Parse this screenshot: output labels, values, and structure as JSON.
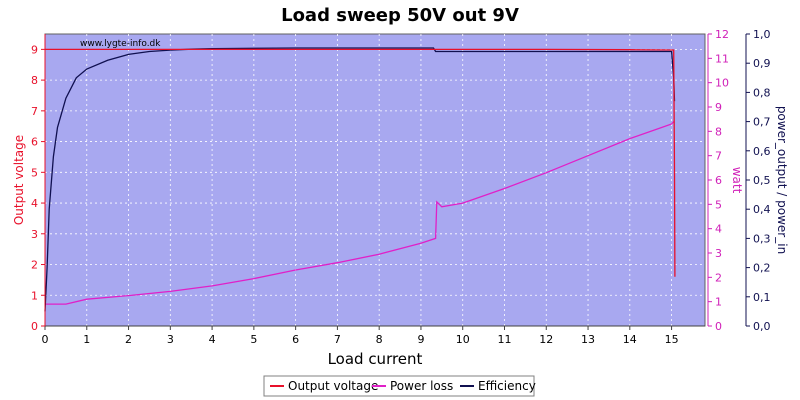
{
  "chart_data": {
    "type": "line",
    "title": "Load sweep 50V out 9V",
    "watermark": "www.lygte-info.dk",
    "xlabel": "Load current",
    "y_left_label": "Output voltage",
    "y_right1_label": "watt",
    "y_right2_label": "power_output / power_in",
    "xlim": [
      0,
      15.8
    ],
    "y_left_lim": [
      0,
      9.5
    ],
    "y_right1_lim": [
      0,
      12
    ],
    "y_right2_lim": [
      0,
      1.0
    ],
    "x_ticks": [
      "0",
      "1",
      "2",
      "3",
      "4",
      "5",
      "6",
      "7",
      "8",
      "9",
      "10",
      "11",
      "12",
      "13",
      "14",
      "15"
    ],
    "y_left_ticks": [
      "0",
      "1",
      "2",
      "3",
      "4",
      "5",
      "6",
      "7",
      "8",
      "9"
    ],
    "y_right1_ticks": [
      "0",
      "1",
      "2",
      "3",
      "4",
      "5",
      "6",
      "7",
      "8",
      "9",
      "10",
      "11",
      "12"
    ],
    "y_right2_ticks": [
      "0,0",
      "0,1",
      "0,2",
      "0,3",
      "0,4",
      "0,5",
      "0,6",
      "0,7",
      "0,8",
      "0,9",
      "1,0"
    ],
    "grid": true,
    "legend_position": "bottom-center",
    "colors": {
      "plot_bg": "#a8a8f0",
      "output_voltage": "#e8102a",
      "power_loss": "#e020c8",
      "efficiency": "#101050",
      "left_axis": "#e8102a",
      "right1_axis": "#d020b8",
      "right2_axis": "#101050"
    },
    "series": [
      {
        "name": "Output voltage",
        "axis": "left",
        "x": [
          0,
          1,
          2,
          4,
          6,
          8,
          9,
          9.4,
          10,
          12,
          14,
          15.05,
          15.07,
          15.08
        ],
        "y": [
          9.0,
          9.0,
          9.0,
          9.0,
          9.0,
          9.0,
          9.0,
          9.0,
          9.0,
          9.0,
          8.99,
          8.98,
          5.0,
          1.6
        ]
      },
      {
        "name": "Power loss",
        "axis": "right1",
        "x": [
          0,
          0.5,
          1,
          2,
          3,
          4,
          5,
          6,
          7,
          8,
          9,
          9.35,
          9.38,
          9.5,
          10,
          11,
          12,
          13,
          14,
          15,
          15.05
        ],
        "y": [
          0.9,
          0.9,
          1.1,
          1.25,
          1.42,
          1.65,
          1.95,
          2.3,
          2.6,
          2.95,
          3.4,
          3.6,
          5.1,
          4.9,
          5.05,
          5.65,
          6.3,
          7.0,
          7.7,
          8.3,
          8.4
        ]
      },
      {
        "name": "Efficiency",
        "axis": "right2",
        "x": [
          0,
          0.05,
          0.1,
          0.2,
          0.3,
          0.5,
          0.75,
          1,
          1.5,
          2,
          2.5,
          3,
          3.5,
          4,
          6,
          8,
          9.3,
          9.35,
          9.45,
          12,
          14,
          15.0,
          15.05,
          15.07
        ],
        "y": [
          0.05,
          0.2,
          0.4,
          0.58,
          0.68,
          0.78,
          0.85,
          0.88,
          0.91,
          0.93,
          0.94,
          0.945,
          0.948,
          0.95,
          0.952,
          0.952,
          0.952,
          0.94,
          0.94,
          0.94,
          0.94,
          0.94,
          0.85,
          0.77
        ]
      }
    ]
  }
}
